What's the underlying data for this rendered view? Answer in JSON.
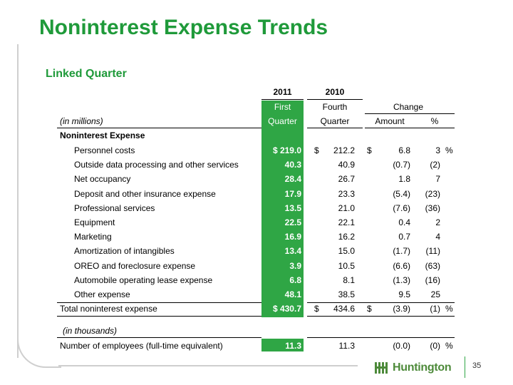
{
  "title": "Noninterest Expense Trends",
  "subtitle": "Linked Quarter",
  "header": {
    "year1": "2011",
    "year2": "2010",
    "col1_top": "First",
    "col1_bottom": "Quarter",
    "col2_top": "Fourth",
    "col2_bottom": "Quarter",
    "change": "Change",
    "amount": "Amount",
    "pct": "%",
    "units": "(in millions)"
  },
  "section_label": "Noninterest Expense",
  "rows": [
    {
      "label": "Personnel costs",
      "q1": "$ 219.0",
      "d2": "$",
      "q4": "212.2",
      "d3": "$",
      "amt": "6.8",
      "pct": "3",
      "pctsym": "%"
    },
    {
      "label": "Outside data processing and other services",
      "q1": "40.3",
      "d2": "",
      "q4": "40.9",
      "d3": "",
      "amt": "(0.7)",
      "pct": "(2)",
      "pctsym": ""
    },
    {
      "label": "Net occupancy",
      "q1": "28.4",
      "d2": "",
      "q4": "26.7",
      "d3": "",
      "amt": "1.8",
      "pct": "7",
      "pctsym": ""
    },
    {
      "label": "Deposit and other insurance expense",
      "q1": "17.9",
      "d2": "",
      "q4": "23.3",
      "d3": "",
      "amt": "(5.4)",
      "pct": "(23)",
      "pctsym": ""
    },
    {
      "label": "Professional services",
      "q1": "13.5",
      "d2": "",
      "q4": "21.0",
      "d3": "",
      "amt": "(7.6)",
      "pct": "(36)",
      "pctsym": ""
    },
    {
      "label": "Equipment",
      "q1": "22.5",
      "d2": "",
      "q4": "22.1",
      "d3": "",
      "amt": "0.4",
      "pct": "2",
      "pctsym": ""
    },
    {
      "label": "Marketing",
      "q1": "16.9",
      "d2": "",
      "q4": "16.2",
      "d3": "",
      "amt": "0.7",
      "pct": "4",
      "pctsym": ""
    },
    {
      "label": "Amortization of intangibles",
      "q1": "13.4",
      "d2": "",
      "q4": "15.0",
      "d3": "",
      "amt": "(1.7)",
      "pct": "(11)",
      "pctsym": ""
    },
    {
      "label": "OREO and foreclosure expense",
      "q1": "3.9",
      "d2": "",
      "q4": "10.5",
      "d3": "",
      "amt": "(6.6)",
      "pct": "(63)",
      "pctsym": ""
    },
    {
      "label": "Automobile operating lease expense",
      "q1": "6.8",
      "d2": "",
      "q4": "8.1",
      "d3": "",
      "amt": "(1.3)",
      "pct": "(16)",
      "pctsym": ""
    },
    {
      "label": "Other expense",
      "q1": "48.1",
      "d2": "",
      "q4": "38.5",
      "d3": "",
      "amt": "9.5",
      "pct": "25",
      "pctsym": ""
    }
  ],
  "total": {
    "label": "Total noninterest expense",
    "q1": "$ 430.7",
    "d2": "$",
    "q4": "434.6",
    "d3": "$",
    "amt": "(3.9)",
    "pct": "(1)",
    "pctsym": "%"
  },
  "thousands_label": "(in thousands)",
  "employees": {
    "label": "Number of employees (full-time equivalent)",
    "q1": "11.3",
    "q4": "11.3",
    "amt": "(0.0)",
    "pct": "(0)",
    "pctsym": "%"
  },
  "logo_text": "Huntington",
  "page_number": "35",
  "colors": {
    "brand_green": "#1f9a3a",
    "column_green": "#2fa645"
  }
}
